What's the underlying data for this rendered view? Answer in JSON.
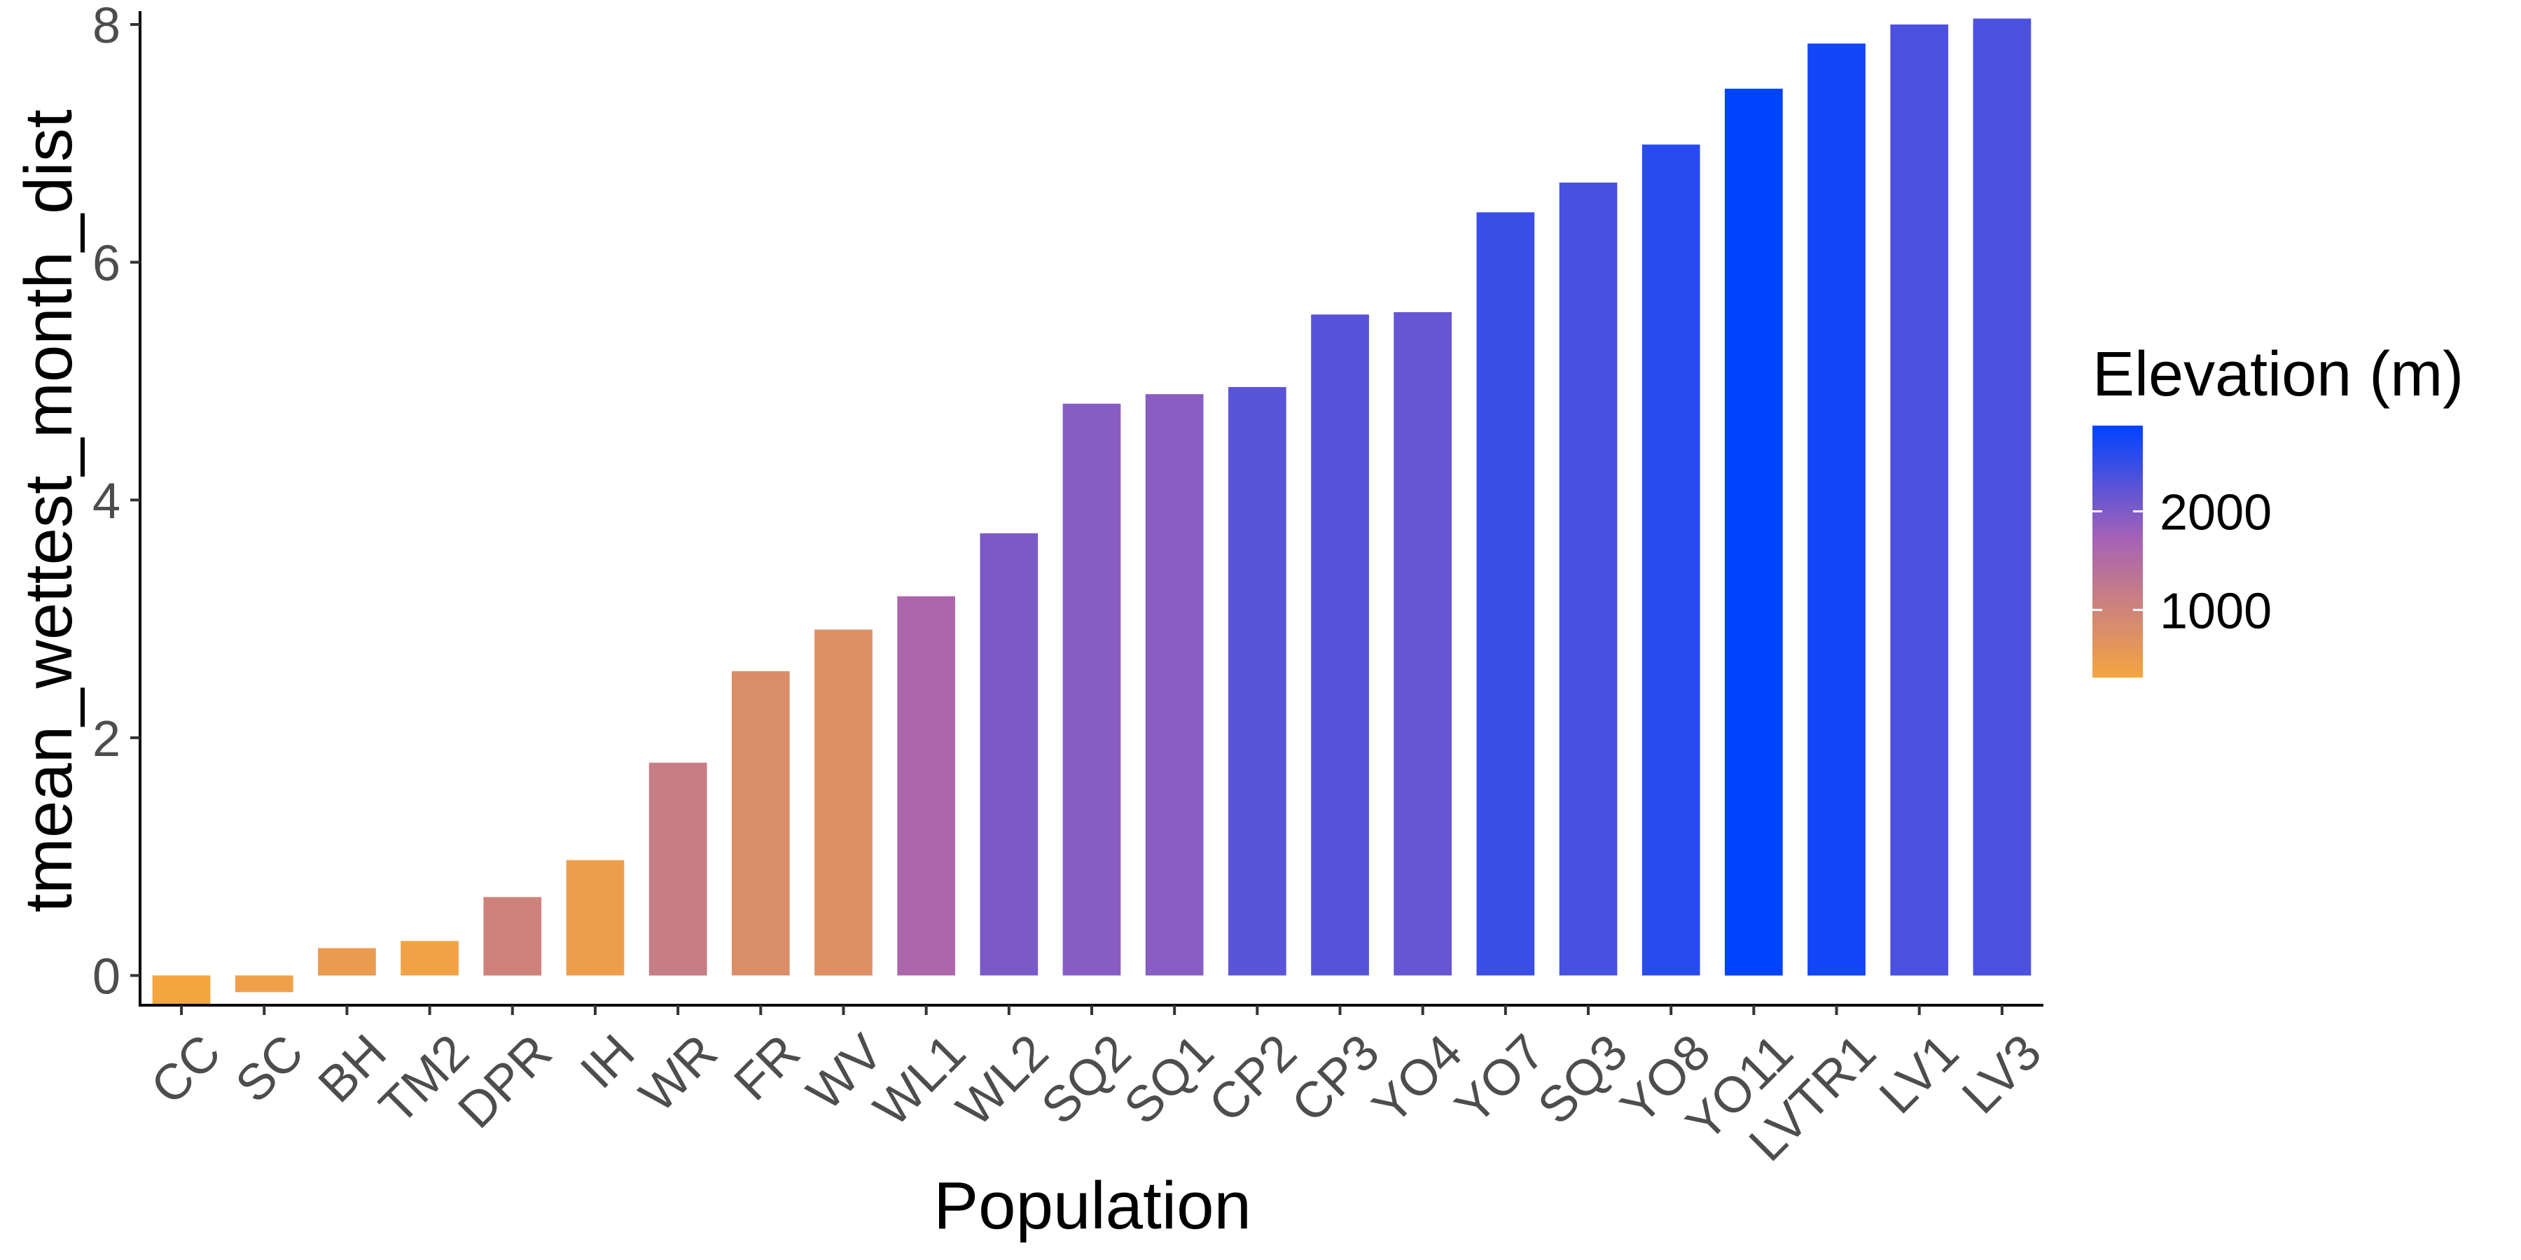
{
  "chart_data": {
    "type": "bar",
    "xlabel": "Population",
    "ylabel": "tmean_wettest_month_dist",
    "ylim": [
      -0.25,
      8.1
    ],
    "y_ticks": [
      0,
      2,
      4,
      6,
      8
    ],
    "grid": false,
    "categories": [
      "CC",
      "SC",
      "BH",
      "TM2",
      "DPR",
      "IH",
      "WR",
      "FR",
      "WV",
      "WL1",
      "WL2",
      "SQ2",
      "SQ1",
      "CP2",
      "CP3",
      "YO4",
      "YO7",
      "SQ3",
      "YO8",
      "YO11",
      "LVTR1",
      "LV1",
      "LV3"
    ],
    "values": [
      -0.24,
      -0.14,
      0.23,
      0.29,
      0.66,
      0.97,
      1.79,
      2.56,
      2.91,
      3.19,
      3.72,
      4.81,
      4.89,
      4.95,
      5.56,
      5.58,
      6.42,
      6.67,
      6.99,
      7.46,
      7.84,
      8.0,
      8.05
    ],
    "elevation_m": [
      313,
      422,
      511,
      379,
      1019,
      454,
      1158,
      787,
      748,
      1614,
      2020,
      1934,
      1921,
      2244,
      2266,
      2158,
      2470,
      2373,
      2591,
      2870,
      2741,
      2353,
      2353
    ],
    "legend": {
      "title": "Elevation (m)",
      "type": "colorbar",
      "placement": "right",
      "ticks": [
        1000,
        2000
      ],
      "range": [
        313,
        2870
      ],
      "colors": {
        "low": "#F5A540",
        "mid": "#A662B5",
        "high": "#0043FF"
      }
    },
    "colors": {
      "axis_line": "#000000",
      "tick_label": "#4d4d4d",
      "background": "#ffffff"
    }
  }
}
